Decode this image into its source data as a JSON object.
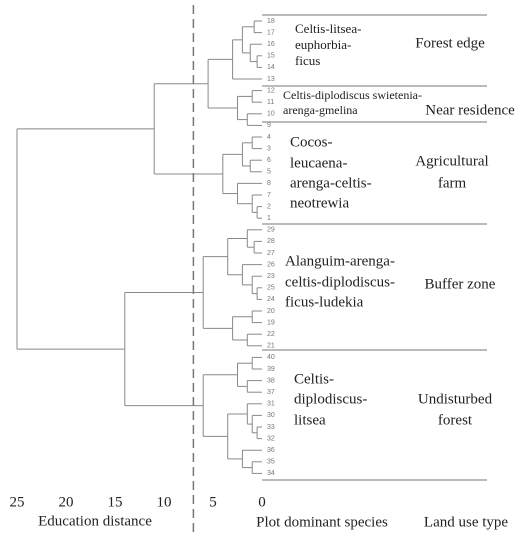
{
  "chart_data": {
    "type": "dendrogram",
    "xlabel": "Education distance",
    "xlim": [
      25,
      0
    ],
    "xticks": [
      25,
      20,
      15,
      10,
      5,
      0
    ],
    "cut_distance": 7,
    "leaf_axis_label": "Plot dominant species",
    "group_axis_label": "Land use type",
    "groups": [
      {
        "species": [
          "Celtis-litsea-",
          "euphorbia-",
          "ficus"
        ],
        "land_use": [
          "Forest edge"
        ]
      },
      {
        "species": [
          "Celtis-diplodiscus swietenia-",
          "arenga-gmelina"
        ],
        "land_use": [
          "Near residence"
        ]
      },
      {
        "species": [
          "Cocos-",
          "leucaena-",
          "arenga-celtis-",
          "neotrewia"
        ],
        "land_use": [
          "Agricultural",
          "farm"
        ]
      },
      {
        "species": [
          "Alanguim-arenga-",
          "celtis-diplodiscus-",
          "ficus-ludekia"
        ],
        "land_use": [
          "Buffer zone"
        ]
      },
      {
        "species": [
          "Celtis-",
          "diplodiscus-",
          "litsea"
        ],
        "land_use": [
          "Undisturbed",
          "forest"
        ]
      }
    ],
    "tree": {
      "height": 25,
      "children": [
        {
          "height": 11,
          "children": [
            {
              "height": 5.5,
              "children": [
                {
                  "height": 3,
                  "children": [
                    {
                      "height": 2,
                      "children": [
                        {
                          "height": 0.8,
                          "children": [
                            {
                              "label": "18"
                            },
                            {
                              "label": "17"
                            }
                          ]
                        },
                        {
                          "height": 1.2,
                          "children": [
                            {
                              "label": "16"
                            },
                            {
                              "height": 0.5,
                              "children": [
                                {
                                  "label": "15"
                                },
                                {
                                  "label": "14"
                                }
                              ]
                            }
                          ]
                        }
                      ]
                    },
                    {
                      "label": "13"
                    }
                  ]
                },
                {
                  "height": 2.5,
                  "children": [
                    {
                      "height": 1,
                      "children": [
                        {
                          "label": "12"
                        },
                        {
                          "label": "11"
                        }
                      ]
                    },
                    {
                      "height": 1.5,
                      "children": [
                        {
                          "label": "10"
                        },
                        {
                          "label": "9"
                        }
                      ]
                    }
                  ]
                }
              ]
            },
            {
              "height": 4,
              "children": [
                {
                  "height": 2,
                  "children": [
                    {
                      "height": 1,
                      "children": [
                        {
                          "label": "4"
                        },
                        {
                          "label": "3"
                        }
                      ]
                    },
                    {
                      "height": 1.2,
                      "children": [
                        {
                          "label": "6"
                        },
                        {
                          "label": "5"
                        }
                      ]
                    }
                  ]
                },
                {
                  "height": 2.5,
                  "children": [
                    {
                      "label": "8"
                    },
                    {
                      "height": 1,
                      "children": [
                        {
                          "label": "7"
                        },
                        {
                          "height": 0.5,
                          "children": [
                            {
                              "label": "2"
                            },
                            {
                              "label": "1"
                            }
                          ]
                        }
                      ]
                    }
                  ]
                }
              ]
            }
          ]
        },
        {
          "height": 14,
          "children": [
            {
              "height": 6,
              "children": [
                {
                  "height": 3.5,
                  "children": [
                    {
                      "height": 1.5,
                      "children": [
                        {
                          "label": "29"
                        },
                        {
                          "height": 0.8,
                          "children": [
                            {
                              "label": "28"
                            },
                            {
                              "label": "27"
                            }
                          ]
                        }
                      ]
                    },
                    {
                      "height": 2,
                      "children": [
                        {
                          "label": "26"
                        },
                        {
                          "height": 1,
                          "children": [
                            {
                              "label": "23"
                            },
                            {
                              "height": 0.5,
                              "children": [
                                {
                                  "label": "25"
                                },
                                {
                                  "label": "24"
                                }
                              ]
                            }
                          ]
                        }
                      ]
                    }
                  ]
                },
                {
                  "height": 3,
                  "children": [
                    {
                      "height": 1,
                      "children": [
                        {
                          "label": "20"
                        },
                        {
                          "label": "19"
                        }
                      ]
                    },
                    {
                      "height": 1.5,
                      "children": [
                        {
                          "label": "22"
                        },
                        {
                          "label": "21"
                        }
                      ]
                    }
                  ]
                }
              ]
            },
            {
              "height": 6,
              "children": [
                {
                  "height": 2.5,
                  "children": [
                    {
                      "height": 1,
                      "children": [
                        {
                          "label": "40"
                        },
                        {
                          "label": "39"
                        }
                      ]
                    },
                    {
                      "height": 1.5,
                      "children": [
                        {
                          "label": "38"
                        },
                        {
                          "label": "37"
                        }
                      ]
                    }
                  ]
                },
                {
                  "height": 3.5,
                  "children": [
                    {
                      "height": 1.5,
                      "children": [
                        {
                          "label": "31"
                        },
                        {
                          "height": 1,
                          "children": [
                            {
                              "label": "30"
                            },
                            {
                              "height": 0.5,
                              "children": [
                                {
                                  "label": "33"
                                },
                                {
                                  "label": "32"
                                }
                              ]
                            }
                          ]
                        }
                      ]
                    },
                    {
                      "height": 2,
                      "children": [
                        {
                          "label": "36"
                        },
                        {
                          "height": 1,
                          "children": [
                            {
                              "label": "35"
                            },
                            {
                              "label": "34"
                            }
                          ]
                        }
                      ]
                    }
                  ]
                }
              ]
            }
          ]
        }
      ]
    }
  }
}
